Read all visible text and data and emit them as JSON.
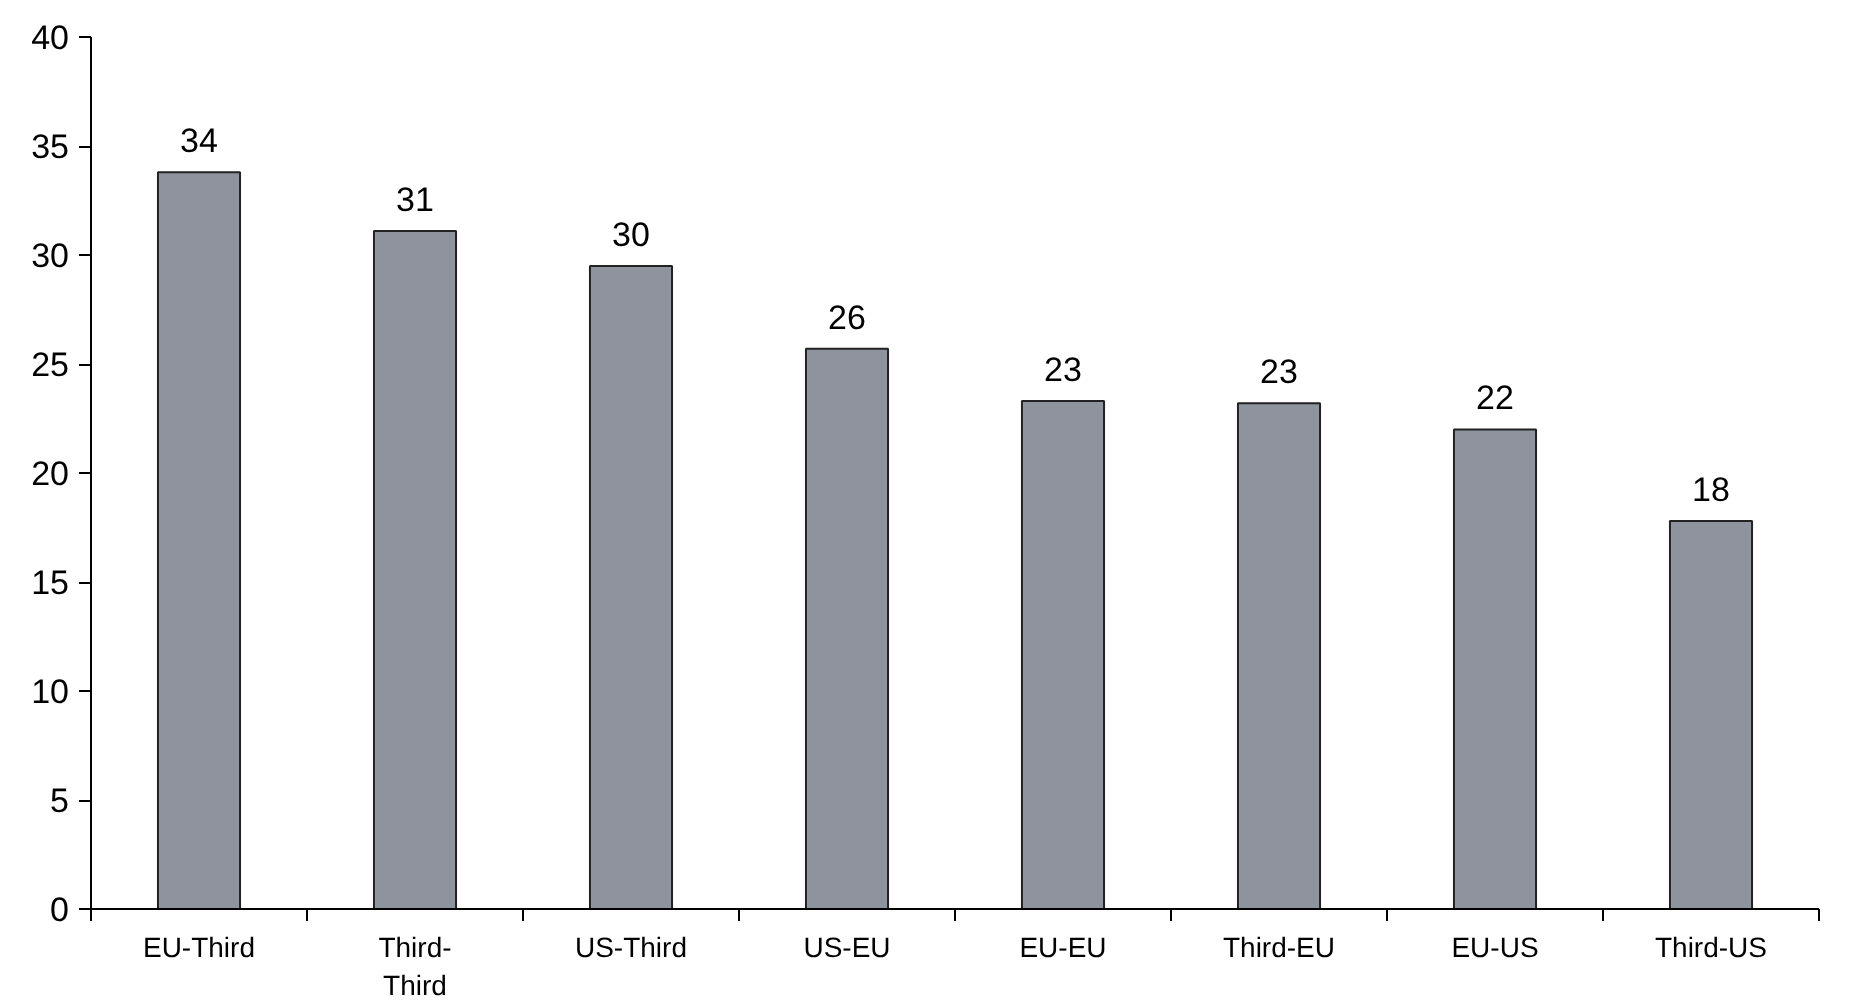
{
  "chart_data": {
    "type": "bar",
    "categories": [
      "EU-Third",
      "Third-Third",
      "US-Third",
      "US-EU",
      "EU-EU",
      "Third-EU",
      "EU-US",
      "Third-US"
    ],
    "values": [
      33.8,
      31.1,
      29.5,
      25.7,
      23.3,
      23.2,
      22.0,
      17.8
    ],
    "value_labels": [
      "34",
      "31",
      "30",
      "26",
      "23",
      "23",
      "22",
      "18"
    ],
    "color": "#8e939e",
    "ylim": [
      0,
      40
    ],
    "yticks": [
      0,
      5,
      10,
      15,
      20,
      25,
      30,
      35,
      40
    ],
    "grid": false
  }
}
